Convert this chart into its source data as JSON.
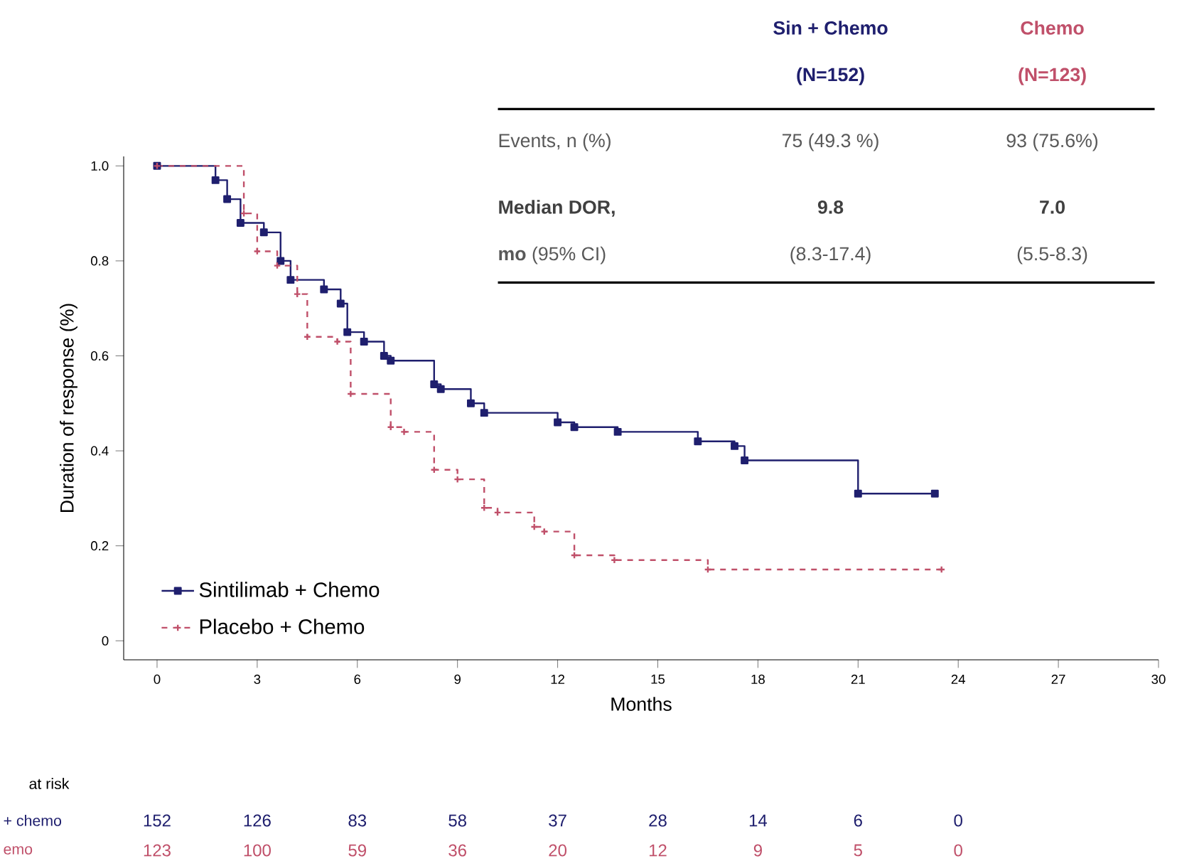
{
  "chart_data": {
    "type": "step",
    "xlabel": "Months",
    "ylabel": "Duration of response (%)",
    "xlim": [
      -1,
      30
    ],
    "ylim": [
      -0.04,
      1.02
    ],
    "xticks": [
      0,
      3,
      6,
      9,
      12,
      15,
      18,
      21,
      24,
      27,
      30
    ],
    "yticks": [
      {
        "value": 0,
        "label": "0"
      },
      {
        "value": 0.2,
        "label": "0.2"
      },
      {
        "value": 0.4,
        "label": "0.4"
      },
      {
        "value": 0.6,
        "label": "0.6"
      },
      {
        "value": 0.8,
        "label": "0.8"
      },
      {
        "value": 1.0,
        "label": "1.0"
      }
    ],
    "legend": "bottom left",
    "grid": false,
    "series": [
      {
        "name": "Sintilimab + Chemo",
        "color": "#1f1f6e",
        "marker": "square",
        "line_style": "solid",
        "x": [
          0,
          1.75,
          2.1,
          2.5,
          3.2,
          3.7,
          4.0,
          5.0,
          5.5,
          5.7,
          6.2,
          6.8,
          7.0,
          8.3,
          8.5,
          9.4,
          9.8,
          12.0,
          12.5,
          13.8,
          16.2,
          17.3,
          17.6,
          21.0,
          23.3
        ],
        "values": [
          1.0,
          0.97,
          0.93,
          0.88,
          0.86,
          0.8,
          0.76,
          0.74,
          0.71,
          0.65,
          0.63,
          0.6,
          0.59,
          0.54,
          0.53,
          0.5,
          0.48,
          0.46,
          0.45,
          0.44,
          0.42,
          0.41,
          0.38,
          0.31,
          0.31
        ]
      },
      {
        "name": "Placebo + Chemo",
        "color": "#c0506a",
        "marker": "cross",
        "line_style": "dashed",
        "x": [
          0,
          2.6,
          3.0,
          3.6,
          4.2,
          4.5,
          5.4,
          5.8,
          7.0,
          7.4,
          8.3,
          9.0,
          9.8,
          10.2,
          11.3,
          11.6,
          12.5,
          13.7,
          16.5,
          23.5
        ],
        "values": [
          1.0,
          0.9,
          0.82,
          0.79,
          0.73,
          0.64,
          0.63,
          0.52,
          0.45,
          0.44,
          0.36,
          0.34,
          0.28,
          0.27,
          0.24,
          0.23,
          0.18,
          0.17,
          0.15,
          0.15
        ]
      }
    ],
    "annotations": [
      "Sin + Chemo",
      "(N=152)",
      "Chemo",
      "(N=123)",
      "Events, n (%)",
      "75 (49.3 %)",
      "93 (75.6%)",
      "Median DOR,",
      "**mo** (95% CI)",
      "9.8",
      "7.0",
      "(8.3-17.4)",
      "(5.5-8.3)",
      "at risk",
      "+ chemo",
      "emo",
      "152",
      "126",
      "83",
      "58",
      "37",
      "28",
      "14",
      "6",
      "0",
      "123",
      "100",
      "59",
      "36",
      "20",
      "12",
      "9",
      "5",
      "0"
    ]
  }
}
